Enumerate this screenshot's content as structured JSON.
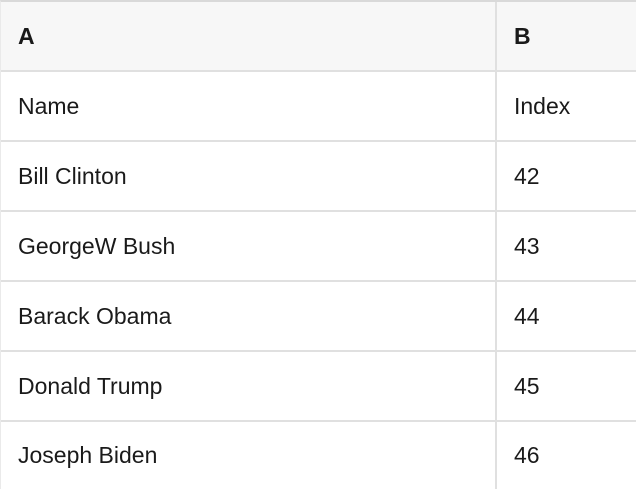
{
  "table": {
    "columns": [
      {
        "header": "A"
      },
      {
        "header": "B"
      }
    ],
    "rows": [
      {
        "a": "Name",
        "b": "Index"
      },
      {
        "a": "Bill Clinton",
        "b": "42"
      },
      {
        "a": "GeorgeW Bush",
        "b": "43"
      },
      {
        "a": "Barack Obama",
        "b": "44"
      },
      {
        "a": "Donald Trump",
        "b": "45"
      },
      {
        "a": "Joseph Biden",
        "b": "46"
      }
    ]
  },
  "colors": {
    "header_bg": "#f7f7f7",
    "grid_border": "#e0e0e0",
    "top_border": "#d9d9d9",
    "edge_border": "#eaeaea",
    "text": "#1a1a1a"
  }
}
